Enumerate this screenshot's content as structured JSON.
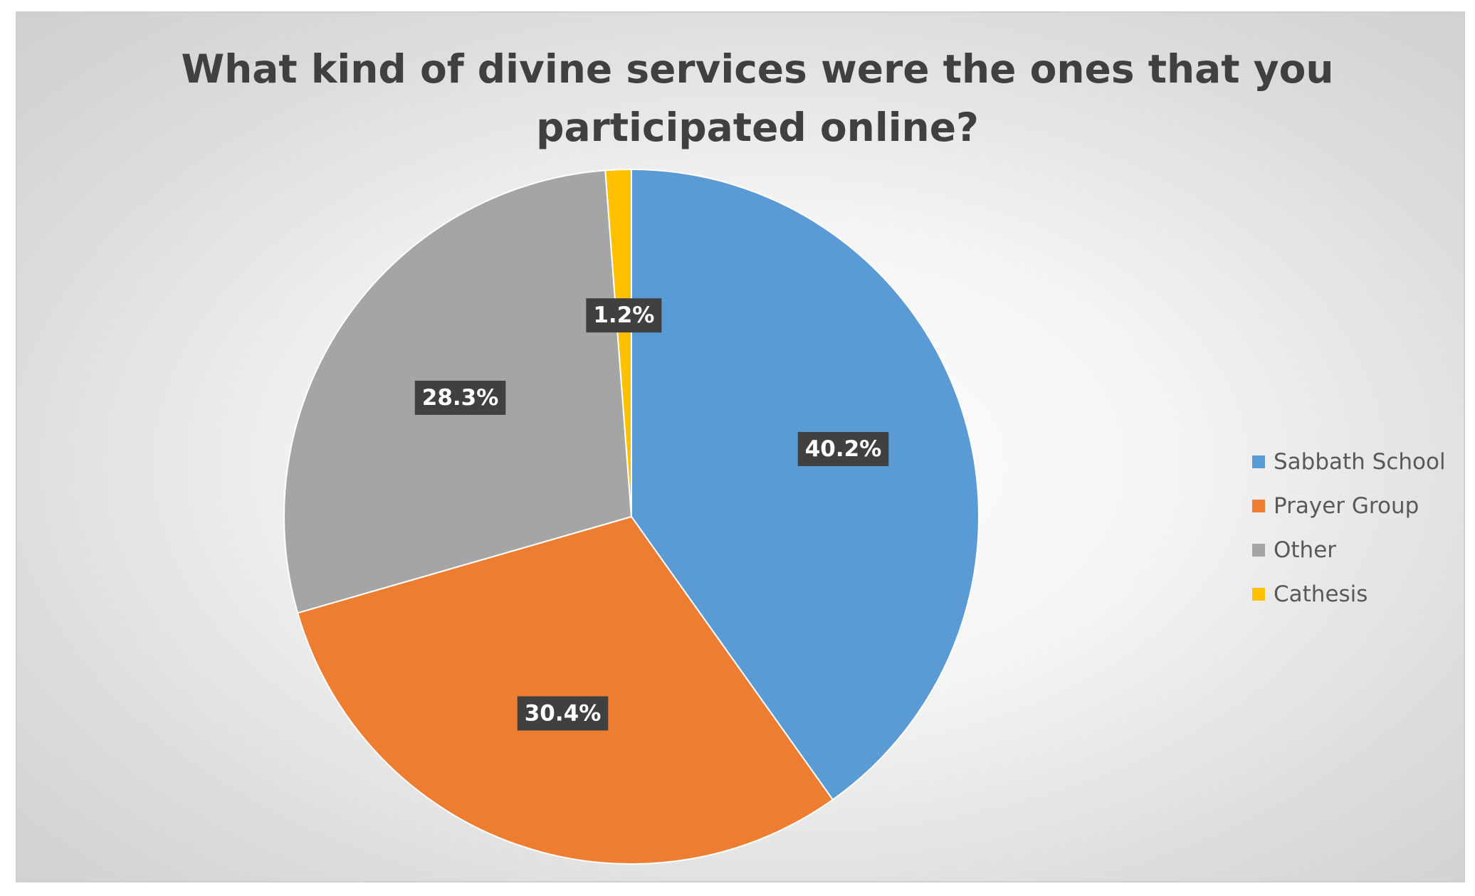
{
  "chart_data": {
    "type": "pie",
    "title": "What kind of divine services were the ones that you participated online?",
    "categories": [
      "Sabbath School",
      "Prayer Group",
      "Other",
      "Cathesis"
    ],
    "values": [
      40.2,
      30.4,
      28.3,
      1.2
    ],
    "labels": [
      "40.2%",
      "30.4%",
      "28.3%",
      "1.2%"
    ],
    "colors": [
      "#5B9BD5",
      "#ED7D31",
      "#A5A5A5",
      "#FFC000"
    ],
    "start_angle_deg": 0,
    "direction": "clockwise",
    "legend_position": "right"
  }
}
